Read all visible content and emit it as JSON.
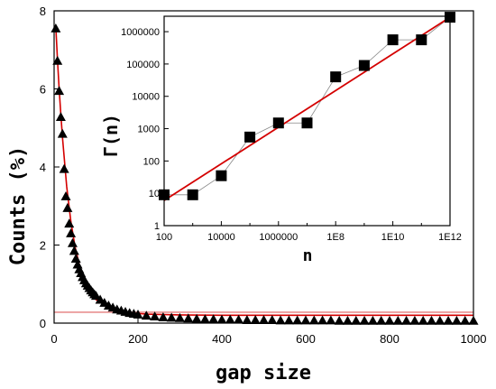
{
  "chart_data": [
    {
      "type": "scatter",
      "xlabel": "gap size",
      "ylabel": "Counts (%)",
      "xlim": [
        0,
        1000
      ],
      "ylim": [
        0,
        8
      ],
      "xticks": [
        0,
        200,
        400,
        600,
        800,
        1000
      ],
      "yticks": [
        0,
        2,
        4,
        6,
        8
      ],
      "xtick_labels": [
        "0",
        "200",
        "400",
        "600",
        "800",
        "1000"
      ],
      "ytick_labels": [
        "0",
        "2",
        "4",
        "6",
        "8"
      ],
      "marker": "triangle",
      "series": [
        {
          "x": [
            4,
            8,
            12,
            16,
            20,
            24,
            28,
            32,
            36,
            40,
            44,
            48,
            52,
            56,
            60,
            64,
            68,
            72,
            76,
            80,
            84,
            88,
            92,
            96,
            100,
            110,
            120,
            130,
            140,
            150,
            160,
            170,
            180,
            190,
            200,
            220,
            240,
            260,
            280,
            300,
            320,
            340,
            360,
            380,
            400,
            420,
            440,
            460,
            480,
            500,
            520,
            540,
            560,
            580,
            600,
            620,
            640,
            660,
            680,
            700,
            720,
            740,
            760,
            780,
            800,
            820,
            840,
            860,
            880,
            900,
            920,
            940,
            960,
            980,
            1000
          ],
          "y": [
            7.55,
            6.72,
            5.95,
            5.28,
            4.85,
            3.95,
            3.25,
            2.95,
            2.55,
            2.3,
            2.05,
            1.85,
            1.65,
            1.5,
            1.38,
            1.28,
            1.18,
            1.1,
            1.02,
            0.96,
            0.9,
            0.84,
            0.79,
            0.74,
            0.7,
            0.6,
            0.52,
            0.45,
            0.4,
            0.35,
            0.32,
            0.29,
            0.26,
            0.24,
            0.22,
            0.19,
            0.17,
            0.15,
            0.14,
            0.13,
            0.12,
            0.11,
            0.1,
            0.1,
            0.09,
            0.09,
            0.09,
            0.08,
            0.08,
            0.08,
            0.08,
            0.07,
            0.07,
            0.07,
            0.07,
            0.07,
            0.07,
            0.07,
            0.06,
            0.06,
            0.06,
            0.06,
            0.06,
            0.06,
            0.06,
            0.06,
            0.06,
            0.06,
            0.06,
            0.06,
            0.06,
            0.06,
            0.06,
            0.06,
            0.06
          ]
        }
      ],
      "fit_lines": [
        {
          "color": "#d40000",
          "x": [
            4,
            8,
            12,
            16,
            20,
            30,
            40,
            50,
            60,
            80,
            100,
            140,
            180,
            220,
            300,
            400,
            600,
            800,
            1000
          ],
          "y": [
            7.6,
            6.75,
            6.0,
            5.35,
            4.75,
            3.5,
            2.6,
            1.95,
            1.5,
            0.9,
            0.6,
            0.35,
            0.27,
            0.23,
            0.21,
            0.2,
            0.2,
            0.2,
            0.2
          ]
        },
        {
          "color": "#e89090",
          "x": [
            0,
            1000
          ],
          "y": [
            0.28,
            0.28
          ]
        }
      ]
    },
    {
      "type": "scatter",
      "xlabel": "n",
      "ylabel": "Γ(n)",
      "x_scale": "log",
      "y_scale": "log",
      "xlim": [
        100,
        1000000000000
      ],
      "ylim": [
        1,
        3000000
      ],
      "xticks": [
        100,
        10000,
        1000000,
        100000000,
        10000000000,
        1000000000000
      ],
      "yticks": [
        1,
        10,
        100,
        1000,
        10000,
        100000,
        1000000
      ],
      "xtick_labels": [
        "100",
        "10000",
        "1000000",
        "1E8",
        "1E10",
        "1E12"
      ],
      "ytick_labels": [
        "1",
        "10",
        "100",
        "1000",
        "10000",
        "100000",
        "1000000"
      ],
      "marker": "square",
      "series": [
        {
          "x": [
            100,
            1000,
            10000,
            100000,
            1000000,
            10000000,
            100000000,
            1000000000,
            10000000000,
            100000000000,
            1000000000000
          ],
          "y": [
            9,
            9,
            35,
            550,
            1500,
            1500,
            40000,
            90000,
            560000,
            560000,
            2800000
          ]
        }
      ],
      "fit_lines": [
        {
          "color": "#d40000",
          "x": [
            100,
            1000000000000
          ],
          "y": [
            6,
            2800000
          ]
        }
      ]
    }
  ]
}
